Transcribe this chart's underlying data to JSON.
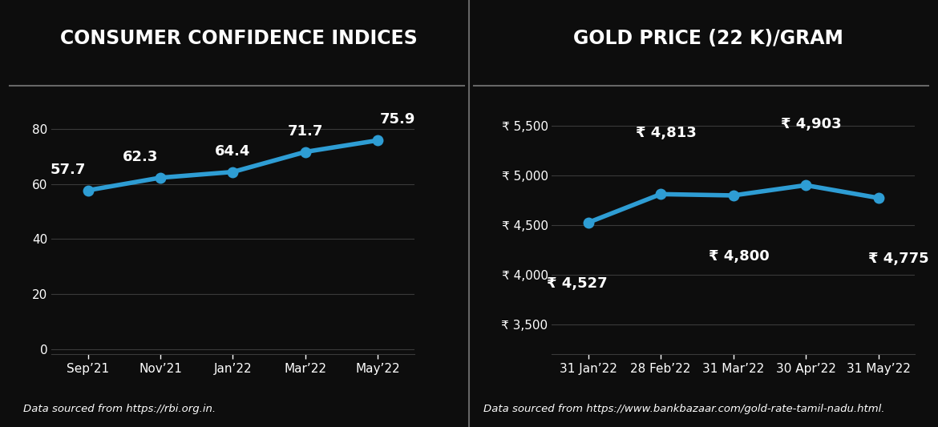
{
  "background_color": "#0d0d0d",
  "left_chart": {
    "title": "CONSUMER CONFIDENCE INDICES",
    "x_labels": [
      "Sep’21",
      "Nov’21",
      "Jan’22",
      "Mar’22",
      "May’22"
    ],
    "y_values": [
      57.7,
      62.3,
      64.4,
      71.7,
      75.9
    ],
    "y_ticks": [
      0,
      20,
      40,
      60,
      80
    ],
    "y_lim": [
      -2,
      92
    ],
    "line_color": "#2e9dd4",
    "marker_color": "#2e9dd4",
    "source_text": "Data sourced from https://rbi.org.in.",
    "annotations": [
      "57.7",
      "62.3",
      "64.4",
      "71.7",
      "75.9"
    ],
    "ann_offsets_x": [
      -18,
      -18,
      0,
      0,
      18
    ],
    "ann_offsets_y": [
      12,
      12,
      12,
      12,
      12
    ]
  },
  "right_chart": {
    "title": "GOLD PRICE (22 K)/GRAM",
    "x_labels": [
      "31 Jan’22",
      "28 Feb’22",
      "31 Mar’22",
      "30 Apr’22",
      "31 May’22"
    ],
    "y_values": [
      4527,
      4813,
      4800,
      4903,
      4775
    ],
    "y_ticks": [
      3500,
      4000,
      4500,
      5000,
      5500
    ],
    "y_lim": [
      3200,
      5800
    ],
    "line_color": "#2e9dd4",
    "marker_color": "#2e9dd4",
    "source_text": "Data sourced from https://www.bankbazaar.com/gold-rate-tamil-nadu.html.",
    "annotations": [
      "₹ 4,527",
      "₹ 4,813",
      "₹ 4,800",
      "₹ 4,903",
      "₹ 4,775"
    ],
    "ann_offsets_x": [
      -10,
      5,
      5,
      5,
      18
    ],
    "ann_offsets_y": [
      -55,
      55,
      -55,
      55,
      -55
    ]
  },
  "title_fontsize": 17,
  "tick_fontsize": 11,
  "annotation_fontsize": 13,
  "source_fontsize": 9.5,
  "line_width": 4.0,
  "marker_size": 9,
  "grid_color": "#3a3a3a",
  "text_color": "#ffffff",
  "divider_color": "#666666"
}
